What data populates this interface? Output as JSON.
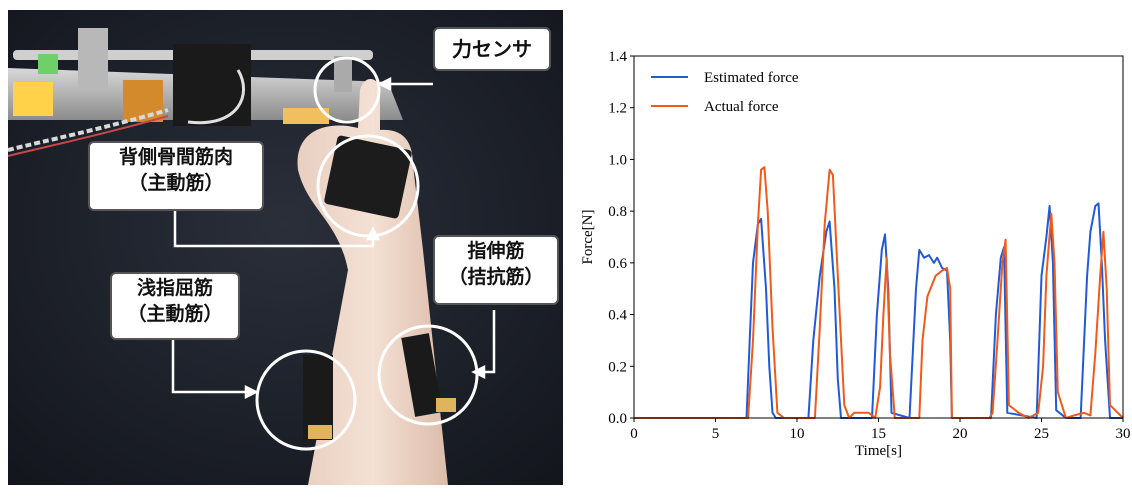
{
  "photo": {
    "labels": {
      "force_sensor": "力センサ",
      "fdi_name": "背側骨間筋肉",
      "fdi_role": "（主動筋）",
      "fds_name": "浅指屈筋",
      "fds_role": "（主動筋）",
      "ed_name": "指伸筋",
      "ed_role": "（拮抗筋）"
    }
  },
  "chart_data": {
    "type": "line",
    "xlabel": "Time[s]",
    "ylabel": "Force[N]",
    "xlim": [
      0,
      30
    ],
    "ylim": [
      0,
      1.4
    ],
    "xticks": [
      0,
      5,
      10,
      15,
      20,
      25,
      30
    ],
    "yticks": [
      0.0,
      0.2,
      0.4,
      0.6,
      0.8,
      1.0,
      1.2,
      1.4
    ],
    "xtick_labels": [
      "0",
      "5",
      "10",
      "15",
      "20",
      "25",
      "30"
    ],
    "ytick_labels": [
      "0.0",
      "0.2",
      "0.4",
      "0.6",
      "0.8",
      "1.0",
      "1.2",
      "1.4"
    ],
    "legend_position": "top-left",
    "grid": false,
    "series": [
      {
        "name": "Estimated force",
        "color": "#1f5bd8",
        "x": [
          0,
          6.9,
          7.1,
          7.3,
          7.6,
          7.8,
          8.1,
          8.3,
          8.5,
          8.7,
          10.7,
          11.0,
          11.4,
          11.8,
          12.0,
          12.3,
          12.5,
          12.7,
          14.6,
          14.9,
          15.2,
          15.4,
          15.6,
          15.8,
          16.9,
          17.3,
          17.5,
          17.8,
          18.1,
          18.4,
          18.6,
          18.9,
          19.2,
          19.4,
          19.5,
          21.9,
          22.2,
          22.5,
          22.7,
          22.9,
          24.7,
          25.0,
          25.3,
          25.5,
          25.7,
          25.9,
          26.5,
          27.0,
          27.4,
          27.8,
          28.0,
          28.3,
          28.5,
          28.7,
          28.9,
          29.2,
          30
        ],
        "y": [
          0,
          0,
          0.3,
          0.6,
          0.75,
          0.77,
          0.5,
          0.2,
          0.02,
          0,
          0,
          0.3,
          0.55,
          0.72,
          0.76,
          0.5,
          0.15,
          0,
          0,
          0.4,
          0.65,
          0.71,
          0.5,
          0.02,
          0,
          0.5,
          0.65,
          0.62,
          0.63,
          0.6,
          0.62,
          0.58,
          0.57,
          0.3,
          0,
          0,
          0.4,
          0.62,
          0.66,
          0.02,
          0,
          0.55,
          0.7,
          0.82,
          0.6,
          0.03,
          0,
          0,
          0,
          0.55,
          0.72,
          0.82,
          0.83,
          0.6,
          0.3,
          0,
          0
        ]
      },
      {
        "name": "Actual force",
        "color": "#f05a1a",
        "x": [
          0,
          7.0,
          7.3,
          7.6,
          7.8,
          8.0,
          8.2,
          8.5,
          8.8,
          9.2,
          11.1,
          11.4,
          11.7,
          12.0,
          12.2,
          12.5,
          12.9,
          13.2,
          13.5,
          14.4,
          14.8,
          15.1,
          15.3,
          15.5,
          15.7,
          16.0,
          17.5,
          17.7,
          18.0,
          18.5,
          18.9,
          19.2,
          19.4,
          19.5,
          21.8,
          22.0,
          22.3,
          22.6,
          22.8,
          23.0,
          23.6,
          24.2,
          24.8,
          25.1,
          25.3,
          25.6,
          25.8,
          26.0,
          26.5,
          27.0,
          27.6,
          28.0,
          28.3,
          28.6,
          28.8,
          29.0,
          29.2,
          30
        ],
        "y": [
          0,
          0,
          0.3,
          0.75,
          0.96,
          0.97,
          0.8,
          0.35,
          0.02,
          0,
          0,
          0.35,
          0.75,
          0.96,
          0.94,
          0.55,
          0.05,
          0,
          0.02,
          0.02,
          0,
          0.12,
          0.4,
          0.62,
          0.25,
          0,
          0,
          0.3,
          0.47,
          0.55,
          0.57,
          0.58,
          0.5,
          0,
          0,
          0.02,
          0.3,
          0.6,
          0.69,
          0.05,
          0.02,
          0,
          0.02,
          0.2,
          0.55,
          0.79,
          0.6,
          0.1,
          0,
          0.01,
          0.02,
          0.01,
          0.25,
          0.55,
          0.72,
          0.5,
          0.05,
          0
        ]
      }
    ]
  }
}
